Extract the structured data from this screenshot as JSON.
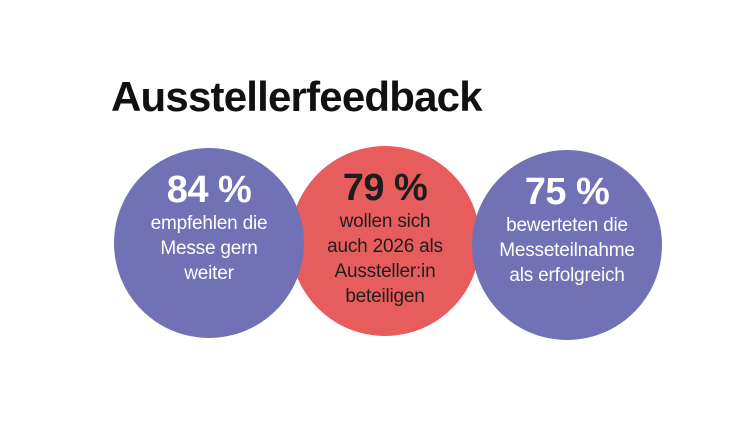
{
  "title": "Ausstellerfeedback",
  "colors": {
    "background": "#ffffff",
    "title_color": "#111111",
    "purple": "#7072b5",
    "red": "#e75d5d",
    "text_on_purple": "#ffffff",
    "text_on_red": "#1d1d1b"
  },
  "circles": [
    {
      "value": "84 %",
      "lines": [
        "empfehlen die",
        "Messe gern",
        "weiter"
      ],
      "label": "empfehlen die Messe gern weiter",
      "color": "#7072b5",
      "text_color": "#ffffff"
    },
    {
      "value": "79 %",
      "lines": [
        "wollen sich",
        "auch 2026 als",
        "Aussteller:in",
        "beteiligen"
      ],
      "label": "wollen sich auch 2026 als Aussteller:in beteiligen",
      "color": "#e75d5d",
      "text_color": "#1d1d1b"
    },
    {
      "value": "75 %",
      "lines": [
        "bewerteten die",
        "Messeteilnahme",
        "als erfolgreich"
      ],
      "label": "bewerteten die Messeteilnahme als erfolgreich",
      "color": "#7072b5",
      "text_color": "#ffffff"
    }
  ],
  "chart_data": {
    "type": "infographic",
    "title": "Ausstellerfeedback",
    "unit": "%",
    "items": [
      {
        "value": 84,
        "label": "empfehlen die Messe gern weiter",
        "color": "#7072b5"
      },
      {
        "value": 79,
        "label": "wollen sich auch 2026 als Aussteller:in beteiligen",
        "color": "#e75d5d"
      },
      {
        "value": 75,
        "label": "bewerteten die Messeteilnahme als erfolgreich",
        "color": "#7072b5"
      }
    ]
  }
}
